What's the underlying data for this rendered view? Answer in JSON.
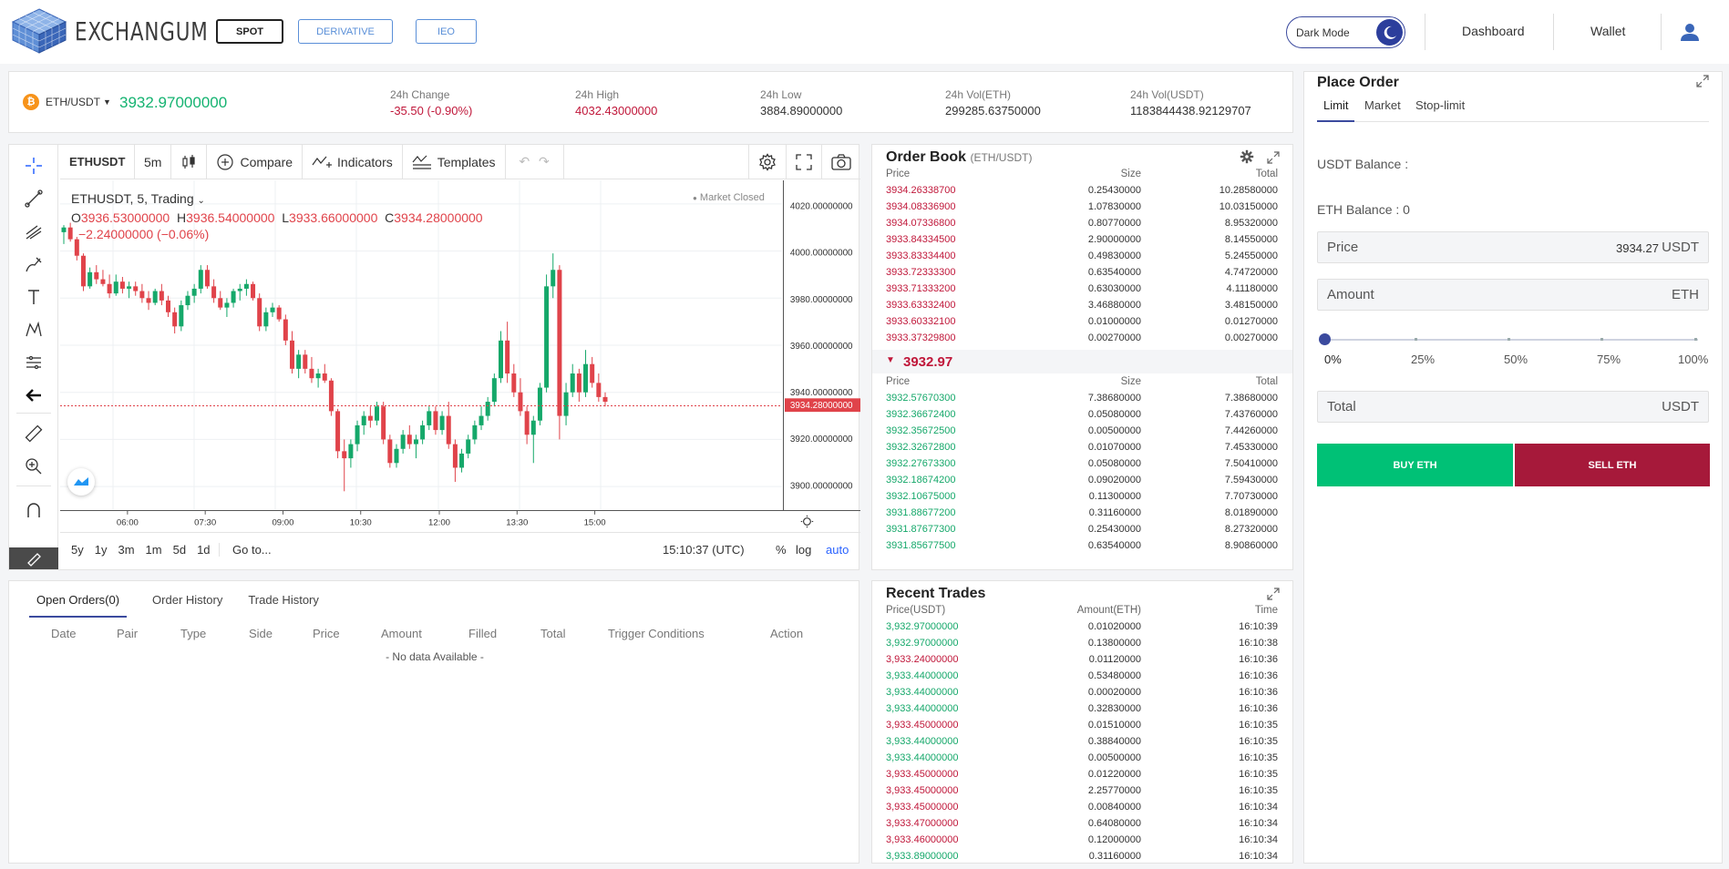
{
  "brand": {
    "name": "EXCHANGUM"
  },
  "modes": {
    "spot": "SPOT",
    "derivative": "DERIVATIVE",
    "ieo": "IEO"
  },
  "nav": {
    "dark_mode": "Dark Mode",
    "dashboard": "Dashboard",
    "wallet": "Wallet"
  },
  "ticker": {
    "pair": "ETH/USDT",
    "last_price": "3932.97000000",
    "stats": [
      {
        "label": "24h Change",
        "value": "-35.50 (-0.90%)",
        "tone": "red"
      },
      {
        "label": "24h High",
        "value": "4032.43000000",
        "tone": "red"
      },
      {
        "label": "24h Low",
        "value": "3884.89000000",
        "tone": "dark"
      },
      {
        "label": "24h Vol(ETH)",
        "value": "299285.63750000",
        "tone": "dark"
      },
      {
        "label": "24h Vol(USDT)",
        "value": "1183844438.92129707",
        "tone": "dark"
      }
    ]
  },
  "chart": {
    "symbol": "ETHUSDT",
    "interval": "5m",
    "compare": "Compare",
    "indicators": "Indicators",
    "templates": "Templates",
    "legend_title": "ETHUSDT, 5, Trading",
    "open_label": "O",
    "open": "3936.53000000",
    "high_label": "H",
    "high": "3936.54000000",
    "low_label": "L",
    "low": "3933.66000000",
    "close_label": "C",
    "close": "3934.28000000",
    "change": "−2.24000000 (−0.06%)",
    "market_status": "Market Closed",
    "current_price_tag": "3934.28000000",
    "ranges": [
      "5y",
      "1y",
      "3m",
      "1m",
      "5d",
      "1d"
    ],
    "goto": "Go to...",
    "clock": "15:10:37 (UTC)",
    "pct": "%",
    "log": "log",
    "auto": "auto"
  },
  "chart_data": {
    "type": "candlestick",
    "y_ticks": [
      "4020.00000000",
      "4000.00000000",
      "3980.00000000",
      "3960.00000000",
      "3940.00000000",
      "3920.00000000",
      "3900.00000000"
    ],
    "x_ticks": [
      "06:00",
      "07:30",
      "09:00",
      "10:30",
      "12:00",
      "13:30",
      "15:00"
    ],
    "ylim": [
      3890,
      4030
    ],
    "candles": [
      [
        4008,
        4011,
        4003,
        4010
      ],
      [
        4010,
        4012,
        4004,
        4005
      ],
      [
        4005,
        4006,
        3996,
        3998
      ],
      [
        3998,
        3999,
        3983,
        3985
      ],
      [
        3985,
        3993,
        3984,
        3991
      ],
      [
        3991,
        3994,
        3986,
        3988
      ],
      [
        3988,
        3992,
        3985,
        3986
      ],
      [
        3986,
        3990,
        3980,
        3982
      ],
      [
        3982,
        3990,
        3981,
        3987
      ],
      [
        3987,
        3989,
        3982,
        3984
      ],
      [
        3984,
        3987,
        3980,
        3985
      ],
      [
        3985,
        3987,
        3981,
        3983
      ],
      [
        3983,
        3986,
        3978,
        3980
      ],
      [
        3980,
        3983,
        3975,
        3978
      ],
      [
        3978,
        3984,
        3977,
        3983
      ],
      [
        3983,
        3986,
        3977,
        3979
      ],
      [
        3979,
        3981,
        3972,
        3974
      ],
      [
        3974,
        3976,
        3965,
        3968
      ],
      [
        3968,
        3979,
        3966,
        3977
      ],
      [
        3977,
        3983,
        3975,
        3981
      ],
      [
        3981,
        3986,
        3978,
        3984
      ],
      [
        3984,
        3994,
        3982,
        3992
      ],
      [
        3992,
        3994,
        3984,
        3985
      ],
      [
        3985,
        3988,
        3978,
        3980
      ],
      [
        3980,
        3983,
        3975,
        3976
      ],
      [
        3976,
        3980,
        3972,
        3978
      ],
      [
        3978,
        3984,
        3976,
        3983
      ],
      [
        3983,
        3986,
        3979,
        3984
      ],
      [
        3984,
        3988,
        3981,
        3986
      ],
      [
        3986,
        3987,
        3979,
        3980
      ],
      [
        3980,
        3982,
        3966,
        3968
      ],
      [
        3968,
        3976,
        3966,
        3974
      ],
      [
        3974,
        3978,
        3972,
        3976
      ],
      [
        3976,
        3977,
        3970,
        3971
      ],
      [
        3971,
        3973,
        3960,
        3962
      ],
      [
        3962,
        3966,
        3948,
        3950
      ],
      [
        3950,
        3958,
        3946,
        3956
      ],
      [
        3956,
        3958,
        3948,
        3950
      ],
      [
        3950,
        3955,
        3944,
        3946
      ],
      [
        3946,
        3950,
        3942,
        3948
      ],
      [
        3948,
        3952,
        3944,
        3945
      ],
      [
        3945,
        3946,
        3930,
        3932
      ],
      [
        3932,
        3933,
        3912,
        3915
      ],
      [
        3915,
        3920,
        3898,
        3912
      ],
      [
        3912,
        3920,
        3908,
        3918
      ],
      [
        3918,
        3928,
        3915,
        3926
      ],
      [
        3926,
        3932,
        3922,
        3930
      ],
      [
        3930,
        3934,
        3925,
        3928
      ],
      [
        3928,
        3936,
        3926,
        3934
      ],
      [
        3934,
        3936,
        3918,
        3920
      ],
      [
        3920,
        3922,
        3908,
        3910
      ],
      [
        3910,
        3918,
        3908,
        3916
      ],
      [
        3916,
        3924,
        3914,
        3922
      ],
      [
        3922,
        3926,
        3916,
        3918
      ],
      [
        3918,
        3922,
        3912,
        3920
      ],
      [
        3920,
        3928,
        3918,
        3926
      ],
      [
        3926,
        3934,
        3924,
        3932
      ],
      [
        3932,
        3934,
        3922,
        3924
      ],
      [
        3924,
        3932,
        3922,
        3930
      ],
      [
        3930,
        3936,
        3916,
        3918
      ],
      [
        3918,
        3920,
        3902,
        3908
      ],
      [
        3908,
        3916,
        3906,
        3914
      ],
      [
        3914,
        3922,
        3912,
        3920
      ],
      [
        3920,
        3928,
        3918,
        3926
      ],
      [
        3926,
        3934,
        3924,
        3930
      ],
      [
        3930,
        3938,
        3928,
        3936
      ],
      [
        3936,
        3948,
        3934,
        3946
      ],
      [
        3946,
        3966,
        3944,
        3962
      ],
      [
        3962,
        3970,
        3944,
        3948
      ],
      [
        3948,
        3952,
        3938,
        3940
      ],
      [
        3940,
        3946,
        3930,
        3932
      ],
      [
        3932,
        3934,
        3918,
        3922
      ],
      [
        3922,
        3930,
        3910,
        3928
      ],
      [
        3928,
        3944,
        3926,
        3942
      ],
      [
        3942,
        3990,
        3940,
        3985
      ],
      [
        3985,
        3999,
        3980,
        3992
      ],
      [
        3992,
        3994,
        3920,
        3930
      ],
      [
        3930,
        3944,
        3926,
        3940
      ],
      [
        3940,
        3952,
        3938,
        3948
      ],
      [
        3948,
        3950,
        3936,
        3940
      ],
      [
        3940,
        3958,
        3938,
        3952
      ],
      [
        3952,
        3955,
        3942,
        3944
      ],
      [
        3944,
        3948,
        3936,
        3938
      ],
      [
        3938,
        3940,
        3934,
        3936
      ]
    ]
  },
  "orderbook": {
    "title": "Order Book",
    "pair": "(ETH/USDT)",
    "headers": [
      "Price",
      "Size",
      "Total"
    ],
    "asks": [
      [
        "3934.26338700",
        "0.25430000",
        "10.28580000"
      ],
      [
        "3934.08336900",
        "1.07830000",
        "10.03150000"
      ],
      [
        "3934.07336800",
        "0.80770000",
        "8.95320000"
      ],
      [
        "3933.84334500",
        "2.90000000",
        "8.14550000"
      ],
      [
        "3933.83334400",
        "0.49830000",
        "5.24550000"
      ],
      [
        "3933.72333300",
        "0.63540000",
        "4.74720000"
      ],
      [
        "3933.71333200",
        "0.63030000",
        "4.11180000"
      ],
      [
        "3933.63332400",
        "3.46880000",
        "3.48150000"
      ],
      [
        "3933.60332100",
        "0.01000000",
        "0.01270000"
      ],
      [
        "3933.37329800",
        "0.00270000",
        "0.00270000"
      ]
    ],
    "mid_price": "3932.97",
    "bids": [
      [
        "3932.57670300",
        "7.38680000",
        "7.38680000"
      ],
      [
        "3932.36672400",
        "0.05080000",
        "7.43760000"
      ],
      [
        "3932.35672500",
        "0.00500000",
        "7.44260000"
      ],
      [
        "3932.32672800",
        "0.01070000",
        "7.45330000"
      ],
      [
        "3932.27673300",
        "0.05080000",
        "7.50410000"
      ],
      [
        "3932.18674200",
        "0.09020000",
        "7.59430000"
      ],
      [
        "3932.10675000",
        "0.11300000",
        "7.70730000"
      ],
      [
        "3931.88677200",
        "0.31160000",
        "8.01890000"
      ],
      [
        "3931.87677300",
        "0.25430000",
        "8.27320000"
      ],
      [
        "3931.85677500",
        "0.63540000",
        "8.90860000"
      ]
    ]
  },
  "orders": {
    "tabs": [
      "Open Orders(0)",
      "Order History",
      "Trade History"
    ],
    "columns": [
      "Date",
      "Pair",
      "Type",
      "Side",
      "Price",
      "Amount",
      "Filled",
      "Total",
      "Trigger Conditions",
      "Action"
    ],
    "empty": "- No data Available -"
  },
  "trades": {
    "title": "Recent Trades",
    "headers": [
      "Price(USDT)",
      "Amount(ETH)",
      "Time"
    ],
    "rows": [
      [
        "3,932.97000000",
        "0.01020000",
        "16:10:39",
        "green"
      ],
      [
        "3,932.97000000",
        "0.13800000",
        "16:10:38",
        "green"
      ],
      [
        "3,933.24000000",
        "0.01120000",
        "16:10:36",
        "red"
      ],
      [
        "3,933.44000000",
        "0.53480000",
        "16:10:36",
        "green"
      ],
      [
        "3,933.44000000",
        "0.00020000",
        "16:10:36",
        "green"
      ],
      [
        "3,933.44000000",
        "0.32830000",
        "16:10:36",
        "green"
      ],
      [
        "3,933.45000000",
        "0.01510000",
        "16:10:35",
        "red"
      ],
      [
        "3,933.44000000",
        "0.38840000",
        "16:10:35",
        "green"
      ],
      [
        "3,933.44000000",
        "0.00500000",
        "16:10:35",
        "green"
      ],
      [
        "3,933.45000000",
        "0.01220000",
        "16:10:35",
        "red"
      ],
      [
        "3,933.45000000",
        "2.25770000",
        "16:10:35",
        "red"
      ],
      [
        "3,933.45000000",
        "0.00840000",
        "16:10:34",
        "red"
      ],
      [
        "3,933.47000000",
        "0.64080000",
        "16:10:34",
        "red"
      ],
      [
        "3,933.46000000",
        "0.12000000",
        "16:10:34",
        "red"
      ],
      [
        "3,933.89000000",
        "0.31160000",
        "16:10:34",
        "green"
      ]
    ]
  },
  "place_order": {
    "title": "Place Order",
    "tabs": [
      "Limit",
      "Market",
      "Stop-limit"
    ],
    "usdt_balance": "USDT Balance :",
    "eth_balance": "ETH Balance : 0",
    "price_label": "Price",
    "price_value": "3934.27",
    "price_unit": "USDT",
    "amount_label": "Amount",
    "amount_unit": "ETH",
    "slider_marks": [
      "0%",
      "25%",
      "50%",
      "75%",
      "100%"
    ],
    "slider_value_pct": 0,
    "total_label": "Total",
    "total_unit": "USDT",
    "buy": "BUY ETH",
    "sell": "SELL ETH"
  },
  "colors": {
    "accent": "#3b4a9e",
    "up": "#15a86a",
    "down": "#e0434a",
    "buy_btn": "#00c176",
    "sell_btn": "#a6193a"
  }
}
